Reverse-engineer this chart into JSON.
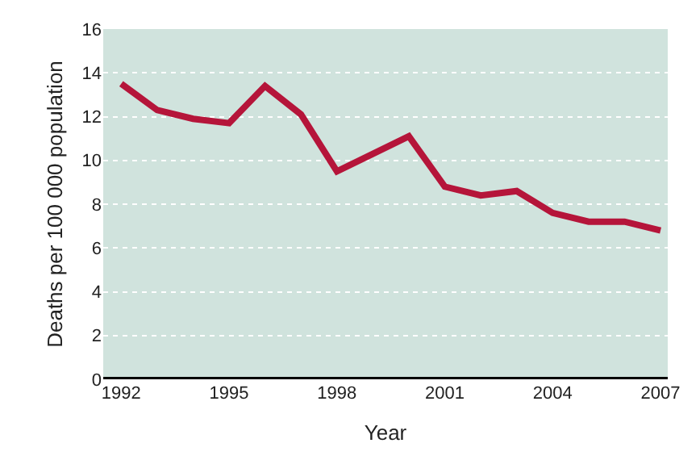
{
  "chart_data": {
    "type": "line",
    "xlabel": "Year",
    "ylabel": "Deaths per 100 000 population",
    "x": [
      1992,
      1993,
      1994,
      1995,
      1996,
      1997,
      1998,
      1999,
      2000,
      2001,
      2002,
      2003,
      2004,
      2005,
      2006,
      2007
    ],
    "series": [
      {
        "color": "#b5153a",
        "values": [
          13.5,
          12.3,
          11.9,
          11.7,
          13.4,
          12.1,
          9.5,
          10.3,
          11.1,
          8.8,
          8.4,
          8.6,
          7.6,
          7.2,
          7.2,
          6.8
        ]
      }
    ],
    "xlim": [
      1991.5,
      2007.2
    ],
    "xticks": [
      1992,
      1995,
      1998,
      2001,
      2004,
      2007
    ],
    "ylim": [
      0,
      16
    ],
    "yticks": [
      0,
      2,
      4,
      6,
      8,
      10,
      12,
      14,
      16
    ],
    "grid": "y",
    "marker": "none",
    "line_style": "solid"
  }
}
